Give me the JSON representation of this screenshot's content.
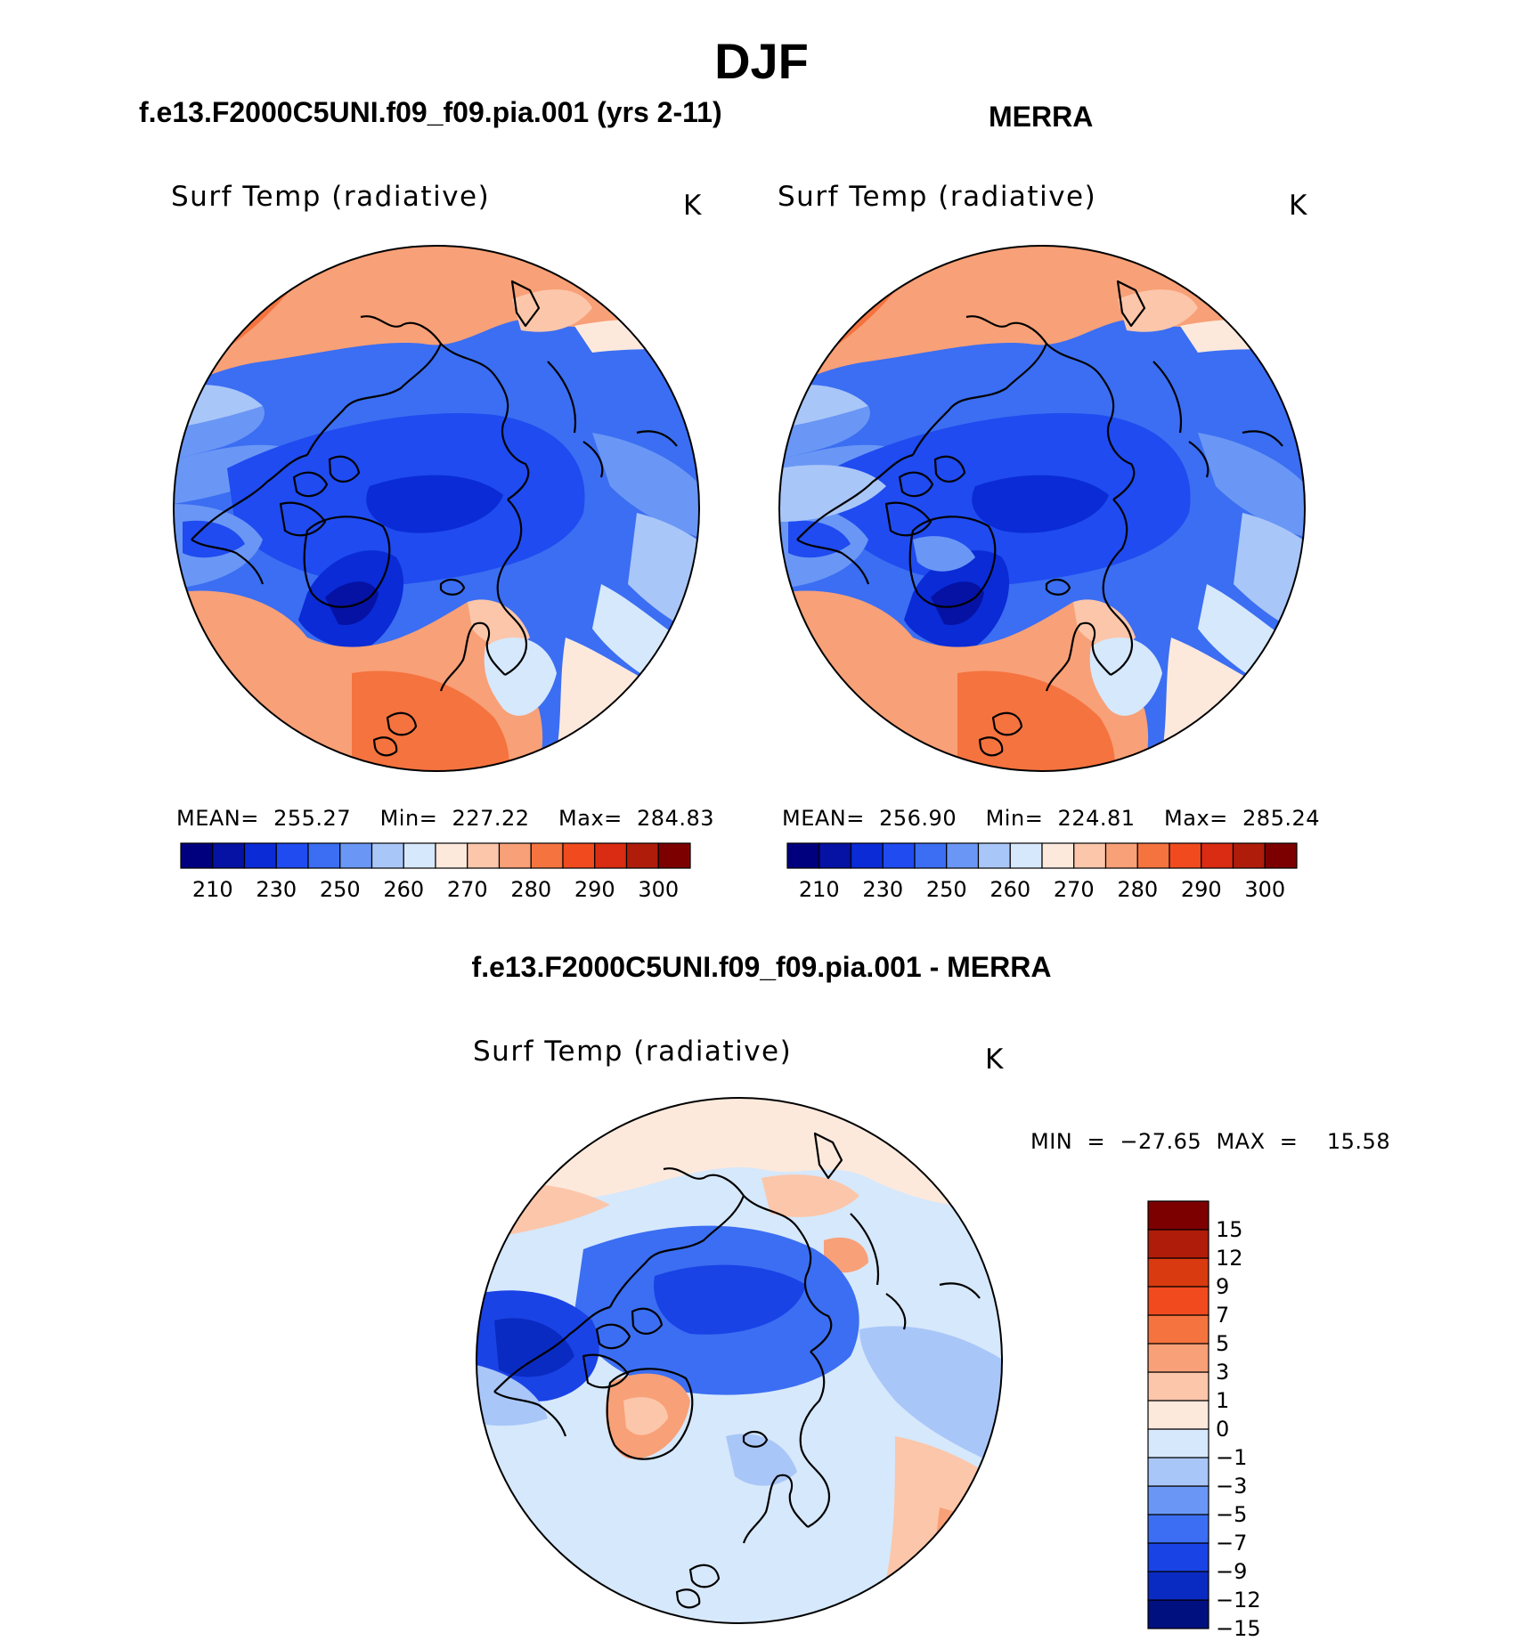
{
  "title": "DJF",
  "panels": [
    {
      "subtitle": "f.e13.F2000C5UNI.f09_f09.pia.001 (yrs 2-11)",
      "plot_title": "Surf Temp (radiative)",
      "units": "K",
      "stats": "MEAN=  255.27    Min=  227.22    Max=  284.83",
      "mean": 255.27,
      "min": 227.22,
      "max": 284.83
    },
    {
      "subtitle": "MERRA",
      "plot_title": "Surf Temp (radiative)",
      "units": "K",
      "stats": "MEAN=  256.90    Min=  224.81    Max=  285.24",
      "mean": 256.9,
      "min": 224.81,
      "max": 285.24
    }
  ],
  "difference": {
    "subtitle": "f.e13.F2000C5UNI.f09_f09.pia.001 - MERRA",
    "plot_title": "Surf Temp (radiative)",
    "units": "K",
    "minmax": "MIN  =  −27.65  MAX  =    15.58",
    "min": -27.65,
    "max": 15.58
  },
  "abs_colorbar": {
    "colors": [
      "#00007f",
      "#0512a3",
      "#0a2bd6",
      "#1f4bf0",
      "#3b6ef2",
      "#6a97f5",
      "#a9c6f8",
      "#d6e8fb",
      "#fde9dc",
      "#fcc6aa",
      "#f8a077",
      "#f5733f",
      "#f14a1f",
      "#d92c12",
      "#b01c0a",
      "#7d0000"
    ],
    "ticks": [
      "210",
      "230",
      "250",
      "260",
      "270",
      "280",
      "290",
      "300"
    ]
  },
  "diff_colorbar": {
    "colors": [
      "#00107f",
      "#0a2bc2",
      "#1a43e6",
      "#3b6ef2",
      "#6a97f5",
      "#a9c6f8",
      "#d6e8fb",
      "#fde9dc",
      "#fcc6aa",
      "#f8a077",
      "#f5733f",
      "#f14a1f",
      "#d93a10",
      "#b01c0a",
      "#7d0000"
    ],
    "ticks": [
      "15",
      "12",
      "9",
      "7",
      "5",
      "3",
      "1",
      "0",
      "−1",
      "−3",
      "−5",
      "−7",
      "−9",
      "−12",
      "−15"
    ]
  }
}
